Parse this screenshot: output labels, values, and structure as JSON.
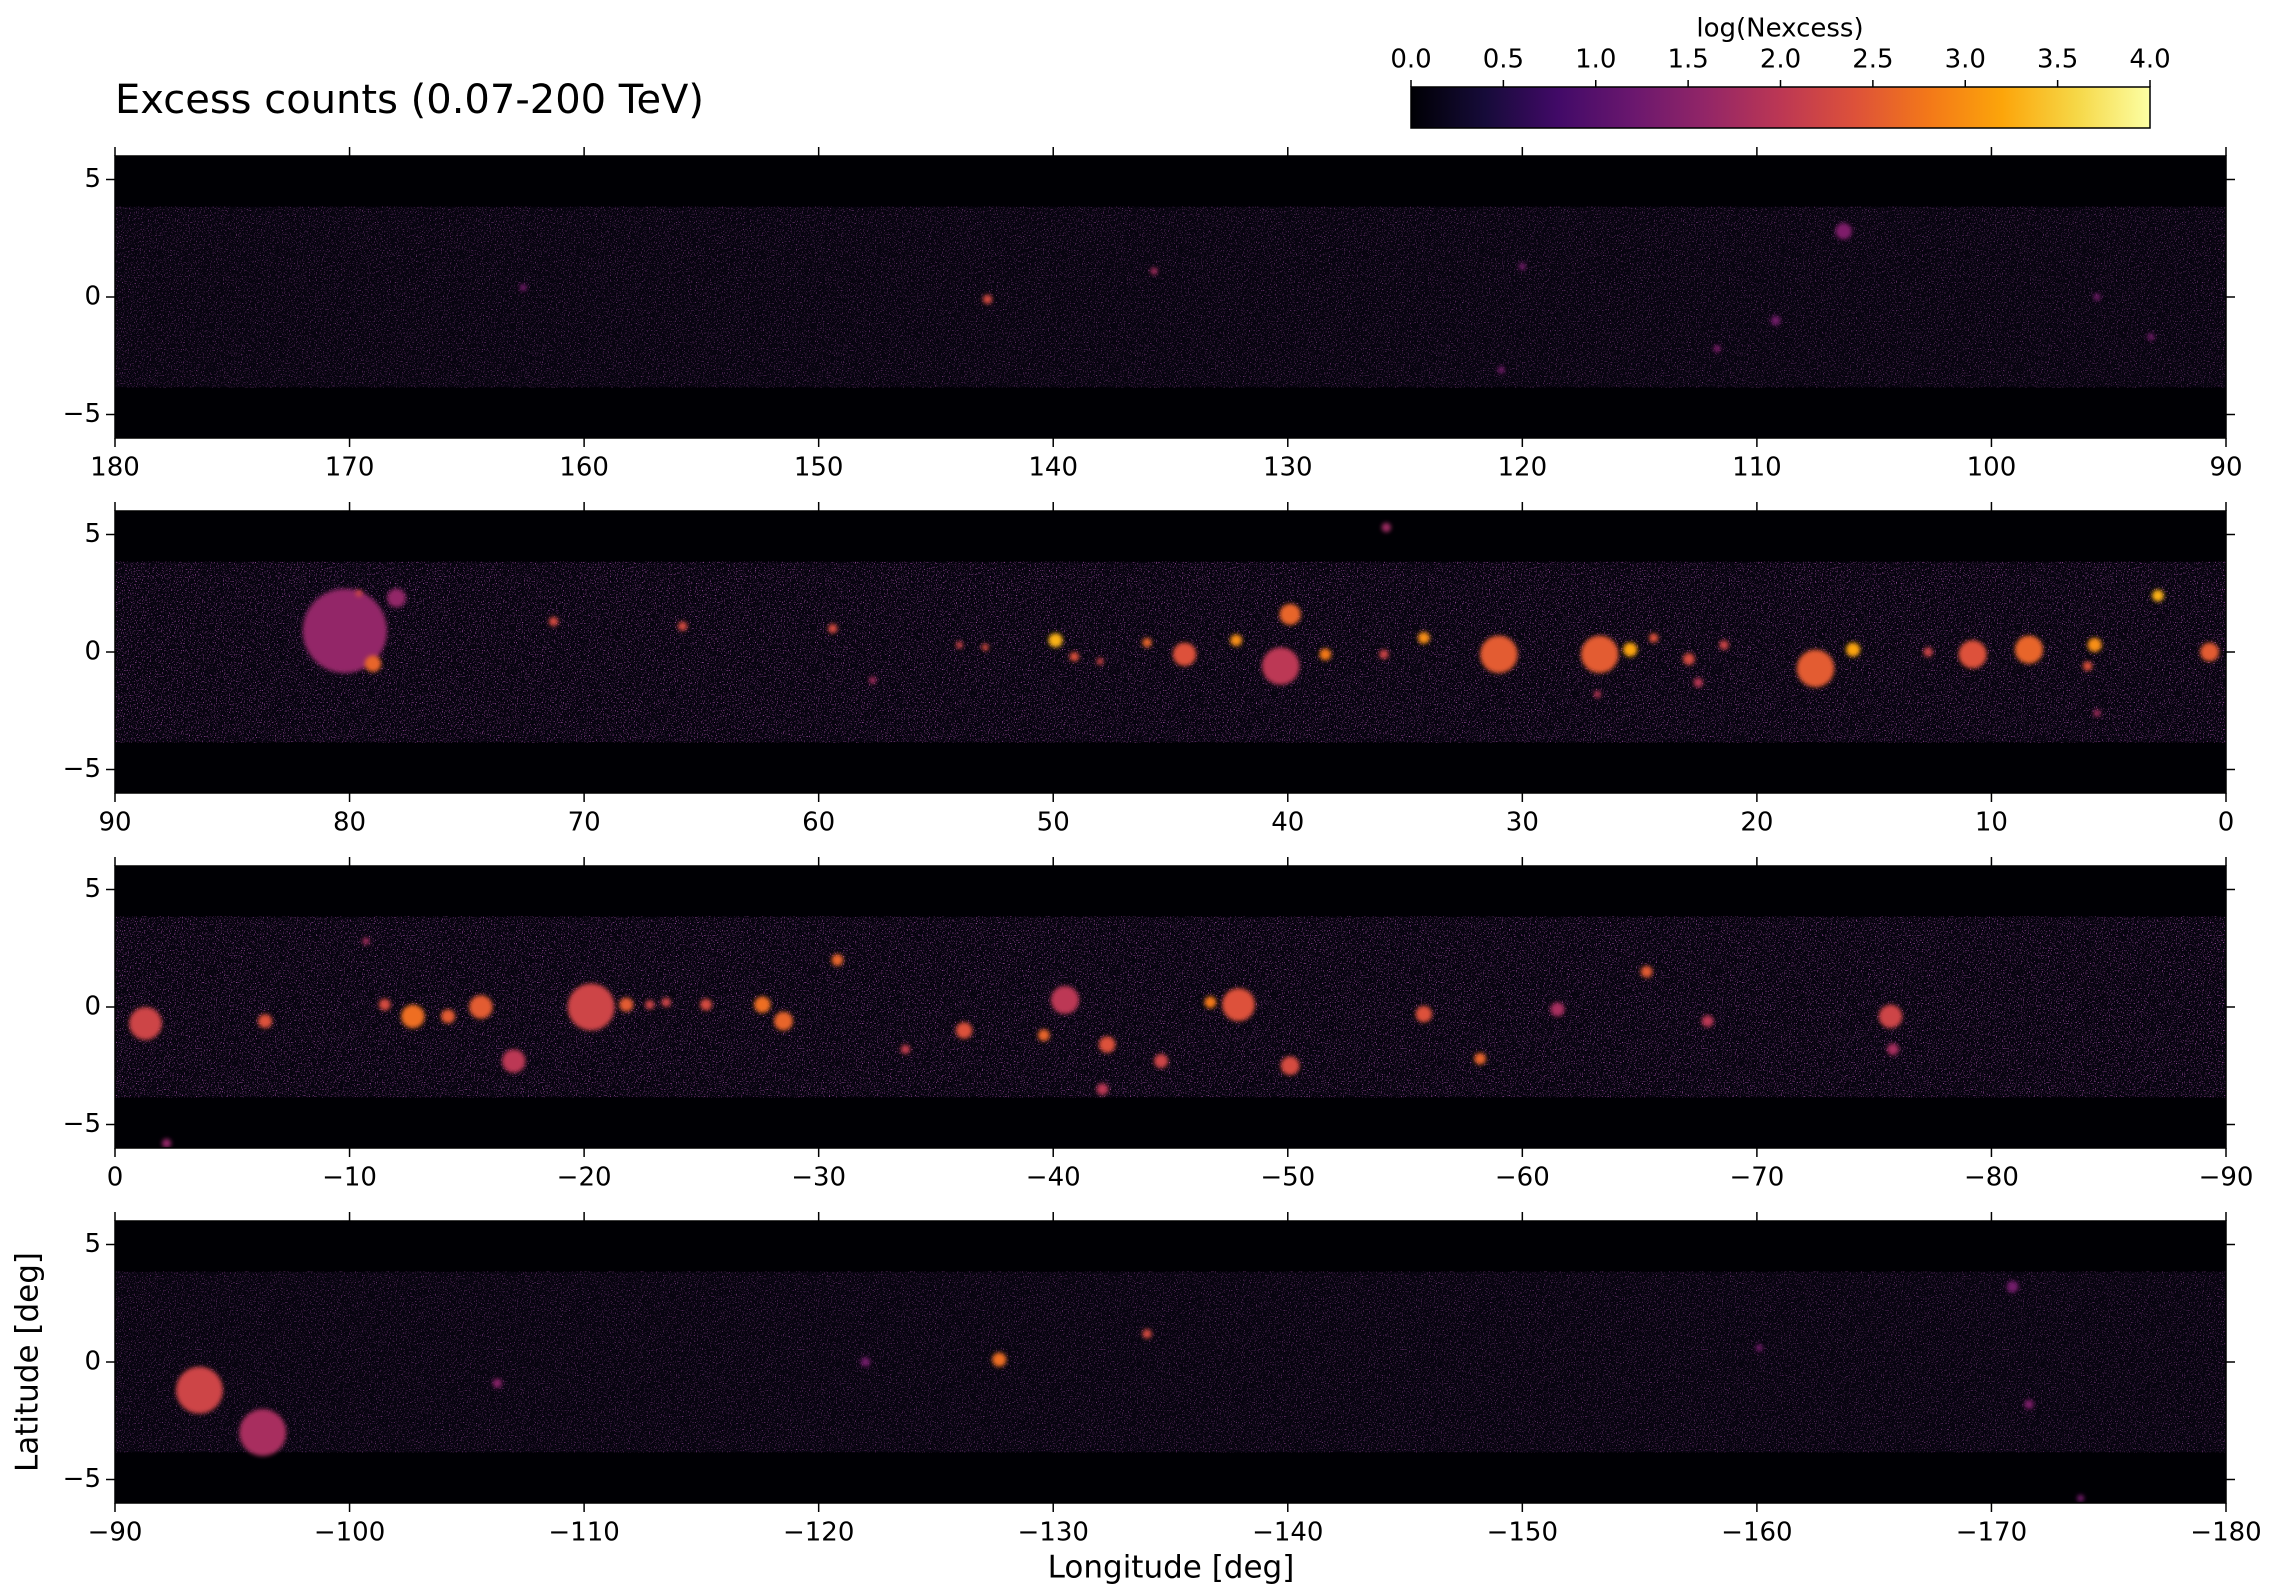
{
  "chart_data": [
    {
      "type": "heatmap",
      "title": "Excess counts (0.07-200 TeV)",
      "colorbar": {
        "label": "log(Nexcess)",
        "colormap": "inferno",
        "clim": [
          0,
          4
        ],
        "ticks": [
          {
            "value": 0,
            "label": "0.0"
          },
          0.5,
          {
            "value": 1,
            "label": "1.0"
          },
          1.5,
          {
            "value": 2,
            "label": "2.0"
          },
          2.5,
          {
            "value": 3,
            "label": "3.0"
          },
          3.5,
          {
            "value": 4,
            "label": "4.0"
          }
        ]
      },
      "xlim": [
        180,
        90
      ],
      "xticks": [
        180,
        170,
        160,
        150,
        140,
        130,
        120,
        110,
        100,
        90
      ],
      "ylim": [
        -6,
        6
      ],
      "yticks": [
        5,
        0,
        {
          "value": -5,
          "label": "−5"
        }
      ],
      "sources": {
        "l": [
          142.8,
          135.7,
          106.3,
          120.0,
          120.9,
          111.7,
          109.2,
          93.2,
          162.6,
          95.5
        ],
        "b": [
          -0.1,
          1.1,
          2.8,
          1.3,
          -3.1,
          -2.2,
          -1.0,
          -1.7,
          0.4,
          0.0
        ],
        "radius": [
          0.2,
          0.15,
          0.35,
          0.15,
          0.15,
          0.15,
          0.2,
          0.15,
          0.15,
          0.15
        ],
        "log_counts": [
          2.3,
          1.8,
          1.4,
          1.3,
          1.3,
          1.4,
          1.3,
          1.3,
          1.3,
          1.3
        ]
      }
    },
    {
      "type": "heatmap",
      "xlim": [
        90,
        0
      ],
      "xticks": [
        90,
        80,
        70,
        60,
        50,
        40,
        30,
        20,
        10,
        0
      ],
      "ylim": [
        -6,
        6
      ],
      "yticks": [
        5,
        0,
        {
          "value": -5,
          "label": "−5"
        }
      ],
      "sources": {
        "l": [
          80.2,
          79.0,
          78.0,
          79.6,
          71.3,
          65.8,
          59.4,
          57.7,
          54.0,
          52.9,
          49.9,
          49.1,
          48.0,
          46.0,
          44.4,
          42.2,
          39.9,
          40.3,
          38.4,
          35.8,
          35.9,
          34.2,
          31.0,
          26.8,
          26.7,
          25.4,
          24.4,
          22.9,
          22.5,
          21.4,
          17.5,
          15.9,
          12.7,
          10.8,
          8.4,
          5.6,
          5.9,
          2.9,
          0.7,
          5.5
        ],
        "b": [
          0.9,
          -0.5,
          2.3,
          2.5,
          1.3,
          1.1,
          1.0,
          -1.2,
          0.3,
          0.2,
          0.5,
          -0.2,
          -0.4,
          0.4,
          -0.1,
          0.5,
          1.6,
          -0.6,
          -0.1,
          5.3,
          -0.1,
          0.6,
          -0.1,
          -1.8,
          -0.1,
          0.1,
          0.6,
          -0.3,
          -1.3,
          0.3,
          -0.7,
          0.1,
          0.0,
          -0.1,
          0.1,
          0.3,
          -0.6,
          2.4,
          0.0,
          -2.6
        ],
        "radius": [
          1.8,
          0.35,
          0.4,
          0.15,
          0.2,
          0.2,
          0.2,
          0.15,
          0.15,
          0.15,
          0.3,
          0.2,
          0.15,
          0.2,
          0.5,
          0.25,
          0.45,
          0.8,
          0.25,
          0.2,
          0.2,
          0.25,
          0.8,
          0.15,
          0.8,
          0.3,
          0.2,
          0.25,
          0.2,
          0.2,
          0.8,
          0.3,
          0.2,
          0.6,
          0.6,
          0.3,
          0.2,
          0.25,
          0.4,
          0.15
        ],
        "log_counts": [
          1.6,
          2.6,
          1.6,
          2.2,
          2.3,
          2.3,
          2.3,
          1.8,
          2.2,
          2.3,
          3.3,
          2.4,
          2.2,
          2.6,
          2.4,
          3.0,
          2.6,
          2.0,
          2.8,
          1.7,
          2.2,
          3.0,
          2.5,
          2.0,
          2.5,
          3.2,
          2.4,
          2.3,
          2.0,
          2.2,
          2.5,
          3.2,
          2.2,
          2.4,
          2.6,
          3.0,
          2.4,
          3.3,
          2.5,
          1.8
        ]
      }
    },
    {
      "type": "heatmap",
      "xlim": [
        0,
        -90
      ],
      "xticks": [
        0,
        {
          "value": -10,
          "label": "−10"
        },
        {
          "value": -20,
          "label": "−20"
        },
        {
          "value": -30,
          "label": "−30"
        },
        {
          "value": -40,
          "label": "−40"
        },
        {
          "value": -50,
          "label": "−50"
        },
        {
          "value": -60,
          "label": "−60"
        },
        {
          "value": -70,
          "label": "−70"
        },
        {
          "value": -80,
          "label": "−80"
        },
        {
          "value": -90,
          "label": "−90"
        }
      ],
      "ylim": [
        -6,
        6
      ],
      "yticks": [
        5,
        0,
        {
          "value": -5,
          "label": "−5"
        }
      ],
      "sources": {
        "l": [
          -1.3,
          -6.4,
          -10.7,
          -11.5,
          -12.7,
          -14.2,
          -15.6,
          -17.0,
          -20.3,
          -21.8,
          -22.8,
          -23.5,
          -25.2,
          -27.6,
          -28.5,
          -30.8,
          -33.7,
          -36.2,
          -39.6,
          -40.5,
          -42.3,
          -42.1,
          -44.6,
          -46.7,
          -47.9,
          -50.1,
          -55.8,
          -58.2,
          -65.3,
          -67.9,
          -61.5,
          -75.7,
          -75.8,
          -2.2
        ],
        "b": [
          -0.7,
          -0.6,
          2.8,
          0.1,
          -0.4,
          -0.4,
          0.0,
          -2.3,
          0.0,
          0.1,
          0.1,
          0.2,
          0.1,
          0.1,
          -0.6,
          2.0,
          -1.8,
          -1.0,
          -1.2,
          0.3,
          -1.6,
          -3.5,
          -2.3,
          0.2,
          0.1,
          -2.5,
          -0.3,
          -2.2,
          1.5,
          -0.6,
          -0.1,
          -0.4,
          -1.8,
          -5.8
        ],
        "radius": [
          0.7,
          0.3,
          0.15,
          0.25,
          0.5,
          0.3,
          0.5,
          0.5,
          1.0,
          0.3,
          0.2,
          0.2,
          0.25,
          0.35,
          0.4,
          0.25,
          0.2,
          0.35,
          0.25,
          0.6,
          0.35,
          0.25,
          0.3,
          0.25,
          0.7,
          0.4,
          0.35,
          0.25,
          0.25,
          0.25,
          0.3,
          0.5,
          0.25,
          0.2
        ],
        "log_counts": [
          2.2,
          2.4,
          1.8,
          2.3,
          2.7,
          2.5,
          2.5,
          2.0,
          2.2,
          2.5,
          2.2,
          2.2,
          2.3,
          2.7,
          2.6,
          2.6,
          2.1,
          2.4,
          2.6,
          2.0,
          2.4,
          2.0,
          2.2,
          2.8,
          2.4,
          2.3,
          2.4,
          2.6,
          2.5,
          2.0,
          1.8,
          2.2,
          1.8,
          1.6
        ]
      }
    },
    {
      "type": "heatmap",
      "xlabel": "Longitude [deg]",
      "ylabel": "Latitude [deg]",
      "xlim": [
        -90,
        -180
      ],
      "xticks": [
        {
          "value": -90,
          "label": "−90"
        },
        {
          "value": -100,
          "label": "−100"
        },
        {
          "value": -110,
          "label": "−110"
        },
        {
          "value": -120,
          "label": "−120"
        },
        {
          "value": -130,
          "label": "−130"
        },
        {
          "value": -140,
          "label": "−140"
        },
        {
          "value": -150,
          "label": "−150"
        },
        {
          "value": -160,
          "label": "−160"
        },
        {
          "value": -170,
          "label": "−170"
        },
        {
          "value": -180,
          "label": "−180"
        }
      ],
      "ylim": [
        -6,
        6
      ],
      "yticks": [
        5,
        0,
        {
          "value": -5,
          "label": "−5"
        }
      ],
      "sources": {
        "l": [
          -93.6,
          -96.3,
          -106.3,
          -122.0,
          -127.7,
          -134.0,
          -170.9,
          -171.6,
          -160.1,
          -173.8
        ],
        "b": [
          -1.2,
          -3.0,
          -0.9,
          0.0,
          0.1,
          1.2,
          3.2,
          -1.8,
          0.6,
          -5.8
        ],
        "radius": [
          1.0,
          1.0,
          0.2,
          0.2,
          0.3,
          0.2,
          0.25,
          0.2,
          0.15,
          0.15
        ],
        "log_counts": [
          2.2,
          1.8,
          1.5,
          1.3,
          2.7,
          2.3,
          1.3,
          1.4,
          1.3,
          1.3
        ]
      }
    }
  ]
}
